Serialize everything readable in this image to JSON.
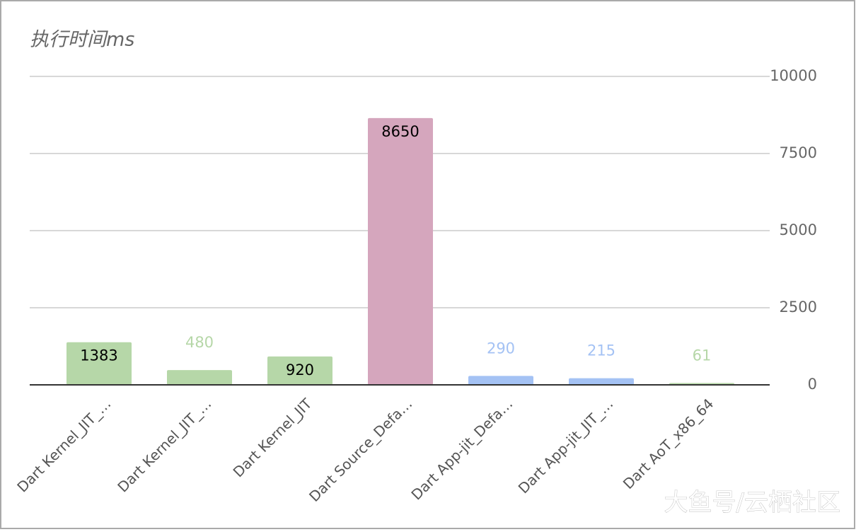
{
  "chart_data": {
    "type": "bar",
    "title": "执行时间ms",
    "watermark": "大鱼号/云栖社区",
    "categories": [
      "Dart Kernel_JIT_…",
      "Dart Kernel_JIT_…",
      "Dart Kernel_JIT",
      "Dart Source_Defa…",
      "Dart App-jit_Defa…",
      "Dart App-jit_JIT_…",
      "Dart AoT_x86_64"
    ],
    "values": [
      1383,
      480,
      920,
      8650,
      290,
      215,
      61
    ],
    "colors": [
      "#b6d7a8",
      "#b6d7a8",
      "#b6d7a8",
      "#d5a6bd",
      "#a4c2f4",
      "#a4c2f4",
      "#b6d7a8"
    ],
    "ylim": [
      0,
      10000
    ],
    "yticks": [
      0,
      2500,
      5000,
      7500,
      10000
    ],
    "grid": true
  }
}
